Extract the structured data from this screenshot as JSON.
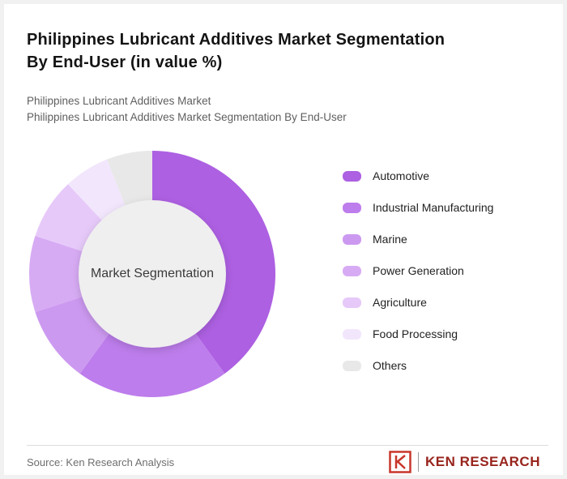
{
  "header": {
    "title_line1": "Philippines Lubricant Additives Market Segmentation",
    "title_line2": "By End-User (in value %)",
    "subtitle1": "Philippines Lubricant Additives Market",
    "subtitle2": "Philippines Lubricant Additives Market Segmentation By End-User"
  },
  "chart_data": {
    "type": "pie",
    "donut": true,
    "title": "Philippines Lubricant Additives Market Segmentation By End-User (in value %)",
    "center_label": "Market Segmentation",
    "units": "value %",
    "legend_position": "right",
    "categories": [
      "Automotive",
      "Industrial Manufacturing",
      "Marine",
      "Power Generation",
      "Agriculture",
      "Food Processing",
      "Others"
    ],
    "values": [
      40,
      20,
      10,
      10,
      8,
      6,
      6
    ],
    "colors": [
      "#ad60e2",
      "#bd7dec",
      "#cc99f0",
      "#d7abf4",
      "#e6c9f9",
      "#f2e6fc",
      "#e8e8e8"
    ],
    "hole_color": "#efefef"
  },
  "footer": {
    "source": "Source: Ken Research Analysis",
    "logo_text": "KEN RESEARCH"
  }
}
